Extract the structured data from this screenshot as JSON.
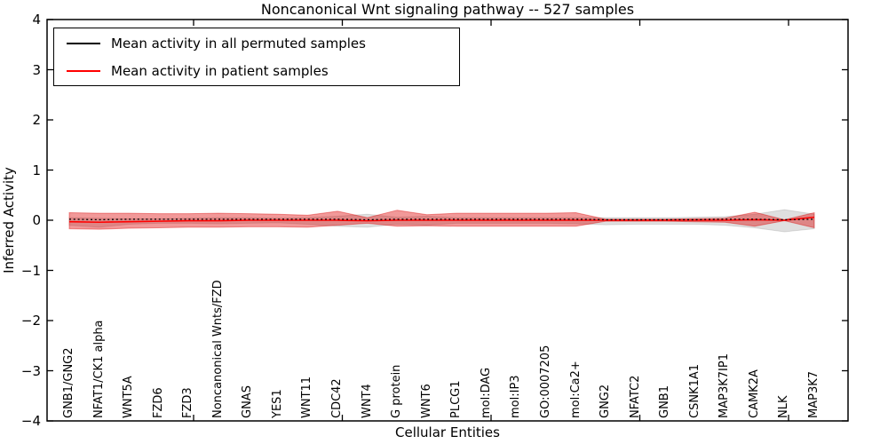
{
  "title": "Noncanonical Wnt signaling pathway -- 527 samples",
  "legend": {
    "items": [
      {
        "label": "Mean activity in all permuted samples",
        "color": "#000000"
      },
      {
        "label": "Mean activity in patient samples",
        "color": "#ff0000"
      }
    ]
  },
  "axes": {
    "ylabel": "Inferred Activity",
    "xlabel": "Cellular Entities",
    "ytick_labels": [
      "4",
      "3",
      "2",
      "1",
      "0",
      "−1",
      "−2",
      "−3",
      "−4"
    ]
  },
  "colors": {
    "spine": "#000000",
    "permuted_line": "#000000",
    "patient_line": "#ff0000",
    "permuted_band": "rgba(140,140,140,0.28)",
    "patient_band": "rgba(220,0,0,0.40)"
  },
  "chart_data": {
    "type": "line",
    "title": "Noncanonical Wnt signaling pathway -- 527 samples",
    "xlabel": "Cellular Entities",
    "ylabel": "Inferred Activity",
    "ylim": [
      -4,
      4
    ],
    "grid": false,
    "legend_position": "upper left",
    "categories": [
      "GNB1/GNG2",
      "NFAT1/CK1 alpha",
      "WNT5A",
      "FZD6",
      "FZD3",
      "Noncanonical Wnts/FZD",
      "GNAS",
      "YES1",
      "WNT11",
      "CDC42",
      "WNT4",
      "G protein",
      "WNT6",
      "PLCG1",
      "mol:DAG",
      "mol:IP3",
      "GO:0007205",
      "mol:Ca2+",
      "GNG2",
      "NFATC2",
      "GNB1",
      "CSNK1A1",
      "MAP3K7IP1",
      "CAMK2A",
      "NLK",
      "MAP3K7"
    ],
    "series": [
      {
        "name": "Mean activity in all permuted samples",
        "type": "line",
        "style": "dashed",
        "color": "#000000",
        "values": [
          0.02,
          0.01,
          0.02,
          0.02,
          0.02,
          0.02,
          0.02,
          0.02,
          0.02,
          0.02,
          0.01,
          0.02,
          0.02,
          0.02,
          0.02,
          0.02,
          0.02,
          0.02,
          0.01,
          0.01,
          0.01,
          0.01,
          0.02,
          0.02,
          0.01,
          0.02
        ]
      },
      {
        "name": "Mean activity in patient samples",
        "type": "line",
        "style": "solid",
        "color": "#ff0000",
        "values": [
          -0.03,
          -0.04,
          -0.03,
          -0.02,
          -0.01,
          -0.01,
          0,
          0,
          0,
          0,
          -0.01,
          0,
          0,
          0,
          0,
          0,
          0,
          0,
          0,
          0,
          0,
          0,
          0,
          0.01,
          0,
          0.06
        ]
      },
      {
        "name": "Permuted samples spread",
        "type": "band",
        "color": "rgba(140,140,140,0.28)",
        "upper": [
          0.05,
          0.04,
          0.03,
          0.03,
          0.04,
          0.05,
          0.05,
          0.04,
          0.05,
          0.08,
          0.12,
          0.06,
          0.08,
          0.05,
          0.05,
          0.05,
          0.05,
          0.05,
          0.05,
          0.05,
          0.05,
          0.06,
          0.07,
          0.12,
          0.21,
          0.12
        ],
        "lower": [
          -0.1,
          -0.14,
          -0.08,
          -0.06,
          -0.06,
          -0.07,
          -0.06,
          -0.05,
          -0.08,
          -0.12,
          -0.14,
          -0.08,
          -0.1,
          -0.06,
          -0.06,
          -0.06,
          -0.06,
          -0.07,
          -0.09,
          -0.08,
          -0.08,
          -0.08,
          -0.1,
          -0.15,
          -0.23,
          -0.17
        ]
      },
      {
        "name": "Patient samples spread",
        "type": "band",
        "color": "rgba(220,0,0,0.40)",
        "upper": [
          0.15,
          0.14,
          0.14,
          0.13,
          0.13,
          0.14,
          0.13,
          0.12,
          0.1,
          0.18,
          0.05,
          0.2,
          0.11,
          0.14,
          0.14,
          0.14,
          0.14,
          0.15,
          0.02,
          0.02,
          0.02,
          0.03,
          0.04,
          0.16,
          0.01,
          0.15
        ],
        "lower": [
          -0.17,
          -0.18,
          -0.16,
          -0.15,
          -0.14,
          -0.14,
          -0.13,
          -0.13,
          -0.14,
          -0.1,
          -0.06,
          -0.12,
          -0.11,
          -0.12,
          -0.12,
          -0.12,
          -0.12,
          -0.12,
          -0.02,
          -0.02,
          -0.02,
          -0.03,
          -0.04,
          -0.12,
          -0.01,
          -0.15
        ]
      }
    ]
  }
}
